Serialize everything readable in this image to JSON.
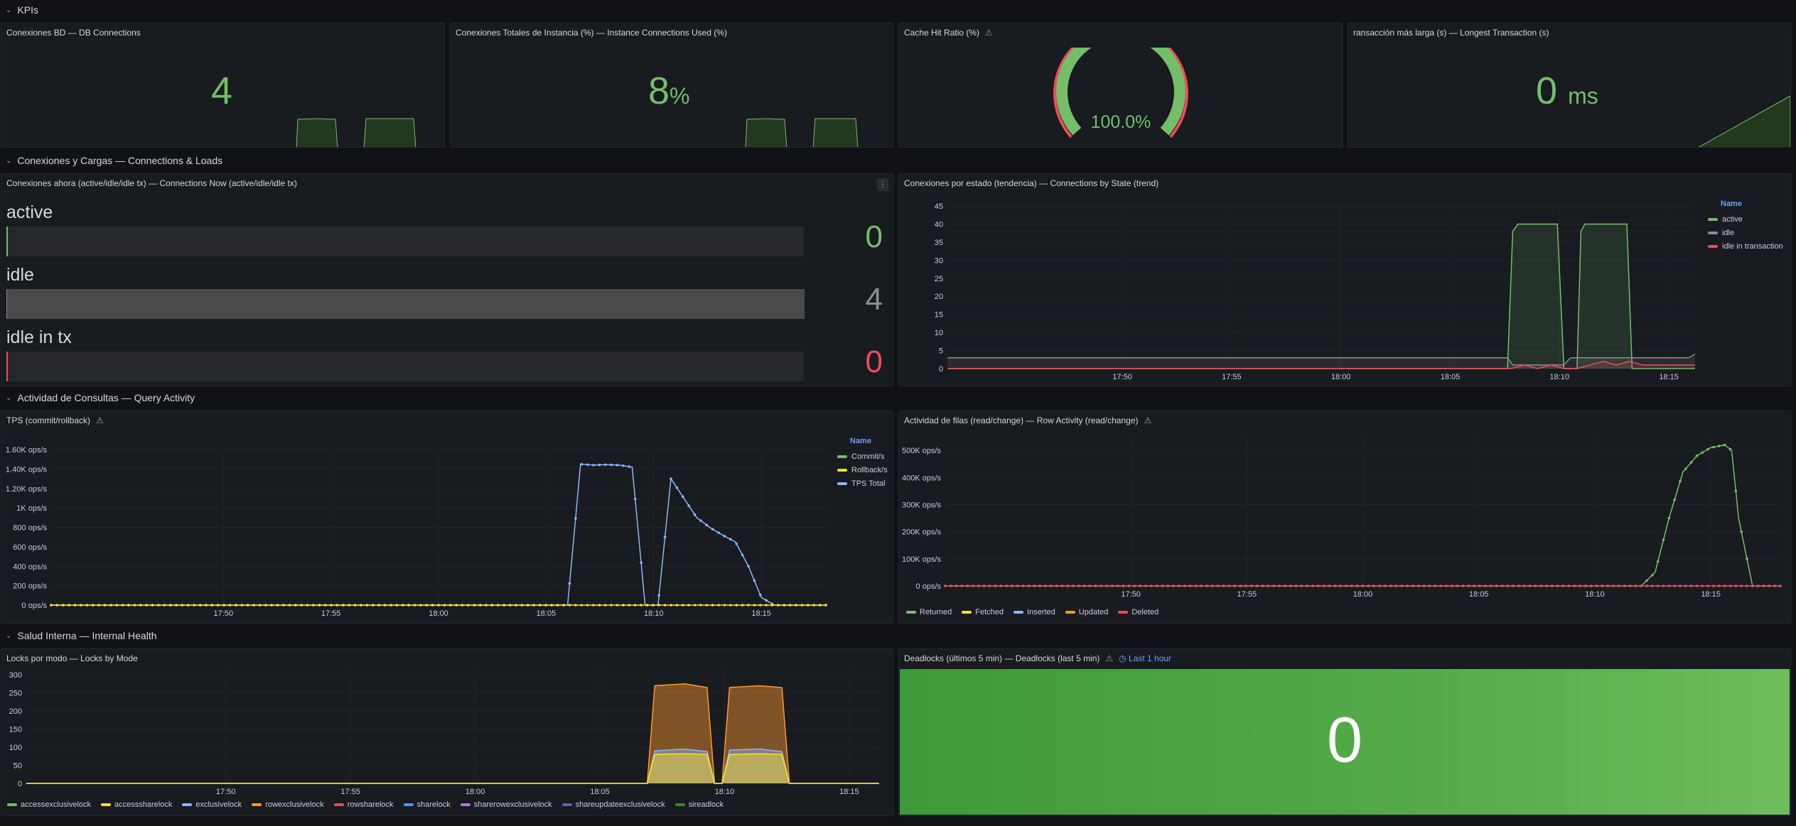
{
  "rows": {
    "kpis": "KPIs",
    "connections": "Conexiones y Cargas — Connections & Loads",
    "query": "Actividad de Consultas — Query Activity",
    "health": "Salud Interna — Internal Health"
  },
  "kpi": {
    "db_conn": {
      "title": "Conexiones BD — DB Connections",
      "value": "4"
    },
    "inst_conn": {
      "title": "Conexiones Totales de Instancia (%) — Instance Connections Used (%)",
      "value": "8",
      "unit": "%"
    },
    "cache": {
      "title": "Cache Hit Ratio (%)",
      "value": "100.0%",
      "percent": 100
    },
    "longest": {
      "title": "ransacción más larga (s) — Longest Transaction (s)",
      "value": "0",
      "unit": "ms"
    }
  },
  "conn_now": {
    "title": "Conexiones ahora (active/idle/idle tx) — Connections Now (active/idle/idle tx)",
    "bars": [
      {
        "label": "active",
        "value": "0",
        "fraction": 0,
        "color": "#73bf69"
      },
      {
        "label": "idle",
        "value": "4",
        "fraction": 1,
        "color": "#8e8e8e"
      },
      {
        "label": "idle in tx",
        "value": "0",
        "fraction": 0,
        "color": "#f2495c"
      }
    ]
  },
  "conn_state": {
    "title": "Conexiones por estado (tendencia) — Connections by State (trend)",
    "legend_title": "Name",
    "legend": [
      {
        "name": "active",
        "color": "#73bf69"
      },
      {
        "name": "idle",
        "color": "#8e8e8e"
      },
      {
        "name": "idle in transaction",
        "color": "#f2495c"
      }
    ]
  },
  "tps": {
    "title": "TPS (commit/rollback)",
    "legend_title": "Name",
    "legend": [
      {
        "name": "Commit/s",
        "color": "#73bf69"
      },
      {
        "name": "Rollback/s",
        "color": "#fade2a"
      },
      {
        "name": "TPS Total",
        "color": "#8ab8ff"
      }
    ]
  },
  "rows_act": {
    "title": "Actividad de filas (read/change) — Row Activity (read/change)",
    "legend": [
      {
        "name": "Returned",
        "color": "#73bf69"
      },
      {
        "name": "Fetched",
        "color": "#fade2a"
      },
      {
        "name": "Inserted",
        "color": "#8ab8ff"
      },
      {
        "name": "Updated",
        "color": "#ff9830"
      },
      {
        "name": "Deleted",
        "color": "#f2495c"
      }
    ]
  },
  "locks": {
    "title": "Locks por modo — Locks by Mode",
    "legend": [
      {
        "name": "accessexclusivelock",
        "color": "#73bf69"
      },
      {
        "name": "accesssharelock",
        "color": "#fade2a"
      },
      {
        "name": "exclusivelock",
        "color": "#8ab8ff"
      },
      {
        "name": "rowexclusivelock",
        "color": "#ff9830"
      },
      {
        "name": "rowsharelock",
        "color": "#f2495c"
      },
      {
        "name": "sharelock",
        "color": "#5794f2"
      },
      {
        "name": "sharerowexclusivelock",
        "color": "#b877d9"
      },
      {
        "name": "shareupdateexclusivelock",
        "color": "#705da0"
      },
      {
        "name": "sireadlock",
        "color": "#37872d"
      }
    ]
  },
  "deadlocks": {
    "title": "Deadlocks (últimos 5 min) — Deadlocks (last 5 min)",
    "time": "Last 1 hour",
    "value": "0"
  },
  "chart_data": [
    {
      "id": "conn_state",
      "type": "line",
      "x_ticks": [
        "17:50",
        "17:55",
        "18:00",
        "18:05",
        "18:10",
        "18:15"
      ],
      "xlim": [
        17.7,
        18.27
      ],
      "ylim": [
        0,
        45
      ],
      "y_ticks": [
        0,
        5,
        10,
        15,
        20,
        25,
        30,
        35,
        40,
        45
      ],
      "series": [
        {
          "name": "active",
          "x": [
            17.7,
            18.127,
            18.131,
            18.135,
            18.15,
            18.165,
            18.17,
            18.18,
            18.183,
            18.186,
            18.201,
            18.218,
            18.222,
            18.225,
            18.27
          ],
          "y": [
            0,
            0,
            38,
            40,
            40,
            40,
            0,
            0,
            38,
            40,
            40,
            40,
            0,
            0,
            0
          ]
        },
        {
          "name": "idle",
          "x": [
            17.7,
            18.127,
            18.131,
            18.17,
            18.175,
            18.225,
            18.23,
            18.265,
            18.27
          ],
          "y": [
            3,
            3,
            1,
            1,
            3,
            3,
            3,
            3,
            4
          ]
        },
        {
          "name": "idle in transaction",
          "x": [
            17.7,
            18.13,
            18.14,
            18.15,
            18.16,
            18.17,
            18.18,
            18.19,
            18.2,
            18.21,
            18.22,
            18.23,
            18.27
          ],
          "y": [
            0,
            0,
            1,
            0,
            1,
            0,
            0,
            1,
            2,
            1,
            2,
            1,
            1
          ]
        }
      ]
    },
    {
      "id": "tps",
      "type": "line",
      "x_ticks": [
        "17:50",
        "17:55",
        "18:00",
        "18:05",
        "18:10",
        "18:15"
      ],
      "xlim": [
        17.7,
        18.3
      ],
      "y_ticks": [
        "0 ops/s",
        "200 ops/s",
        "400 ops/s",
        "600 ops/s",
        "800 ops/s",
        "1K ops/s",
        "1.20K ops/s",
        "1.40K ops/s",
        "1.60K ops/s"
      ],
      "ylim": [
        0,
        1600
      ],
      "series": [
        {
          "name": "TPS Total",
          "x": [
            17.7,
            18.08,
            18.1,
            18.11,
            18.12,
            18.13,
            18.14,
            18.15,
            18.16,
            18.17,
            18.18,
            18.19,
            18.2,
            18.21,
            18.22,
            18.23,
            18.24,
            18.25,
            18.26,
            18.27,
            18.28,
            18.3
          ],
          "y": [
            0,
            0,
            0,
            1450,
            1440,
            1445,
            1440,
            1420,
            0,
            0,
            1300,
            1100,
            900,
            800,
            720,
            650,
            400,
            80,
            0,
            0,
            0,
            0
          ]
        },
        {
          "name": "Rollback/s",
          "x": [
            17.7,
            18.3
          ],
          "y": [
            0,
            0
          ]
        }
      ]
    },
    {
      "id": "rows_act",
      "type": "line",
      "x_ticks": [
        "17:50",
        "17:55",
        "18:00",
        "18:05",
        "18:10",
        "18:15"
      ],
      "xlim": [
        17.7,
        18.3
      ],
      "y_ticks": [
        "0 ops/s",
        "100K ops/s",
        "200K ops/s",
        "300K ops/s",
        "400K ops/s",
        "500K ops/s"
      ],
      "ylim": [
        0,
        550000
      ],
      "series": [
        {
          "name": "Returned",
          "x": [
            17.7,
            18.2,
            18.21,
            18.22,
            18.23,
            18.24,
            18.25,
            18.26,
            18.265,
            18.27,
            18.28,
            18.3
          ],
          "y": [
            0,
            0,
            50000,
            250000,
            420000,
            480000,
            510000,
            520000,
            500000,
            250000,
            0,
            0
          ]
        },
        {
          "name": "Deleted",
          "x": [
            17.7,
            18.3
          ],
          "y": [
            0,
            0
          ]
        }
      ]
    },
    {
      "id": "locks",
      "type": "area",
      "x_ticks": [
        "17:50",
        "17:55",
        "18:00",
        "18:05",
        "18:10",
        "18:15"
      ],
      "xlim": [
        17.7,
        18.27
      ],
      "y_ticks": [
        0,
        50,
        100,
        150,
        200,
        250,
        300
      ],
      "ylim": [
        0,
        320
      ],
      "series": [
        {
          "name": "rowexclusivelock",
          "x": [
            17.7,
            18.115,
            18.12,
            18.14,
            18.155,
            18.16,
            18.165,
            18.17,
            18.19,
            18.205,
            18.21,
            18.27
          ],
          "y": [
            0,
            0,
            270,
            275,
            265,
            0,
            0,
            265,
            270,
            265,
            0,
            0
          ]
        },
        {
          "name": "exclusivelock",
          "x": [
            17.7,
            18.115,
            18.12,
            18.14,
            18.155,
            18.16,
            18.165,
            18.17,
            18.19,
            18.205,
            18.21,
            18.27
          ],
          "y": [
            0,
            0,
            90,
            95,
            88,
            0,
            0,
            92,
            95,
            88,
            0,
            0
          ]
        },
        {
          "name": "accesssharelock",
          "x": [
            17.7,
            18.115,
            18.12,
            18.14,
            18.155,
            18.16,
            18.165,
            18.17,
            18.19,
            18.205,
            18.21,
            18.27
          ],
          "y": [
            0,
            0,
            80,
            82,
            80,
            0,
            0,
            80,
            82,
            80,
            0,
            0
          ]
        }
      ]
    }
  ]
}
